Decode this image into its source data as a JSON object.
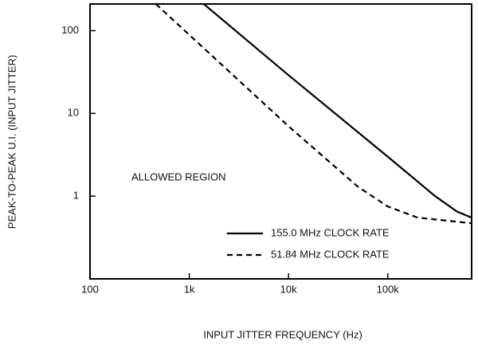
{
  "chart_data": {
    "type": "line",
    "xlabel": "INPUT JITTER FREQUENCY (Hz)",
    "ylabel": "PEAK-TO-PEAK U.I. (INPUT JITTER)",
    "annotation": "ALLOWED REGION",
    "xscale": "log",
    "yscale": "log",
    "xlim": [
      100,
      700000
    ],
    "ylim": [
      0.1,
      210
    ],
    "xticks": [
      100,
      {
        "value": 1000,
        "label": "1k"
      },
      {
        "value": 10000,
        "label": "10k"
      },
      {
        "value": 100000,
        "label": "100k"
      }
    ],
    "yticks": [
      1,
      10,
      100
    ],
    "legend": "lower right",
    "series": [
      {
        "name": "155.0 MHz CLOCK RATE",
        "color": "#000000",
        "dash": "solid",
        "x": [
          1400,
          10000,
          100000,
          300000,
          500000,
          700000
        ],
        "values": [
          210,
          29,
          3,
          1,
          0.65,
          0.55
        ]
      },
      {
        "name": "51.84 MHz CLOCK RATE",
        "color": "#000000",
        "dash": "dashed",
        "x": [
          460,
          10000,
          50000,
          100000,
          200000,
          700000
        ],
        "values": [
          210,
          7,
          1.3,
          0.75,
          0.55,
          0.47
        ]
      }
    ]
  }
}
